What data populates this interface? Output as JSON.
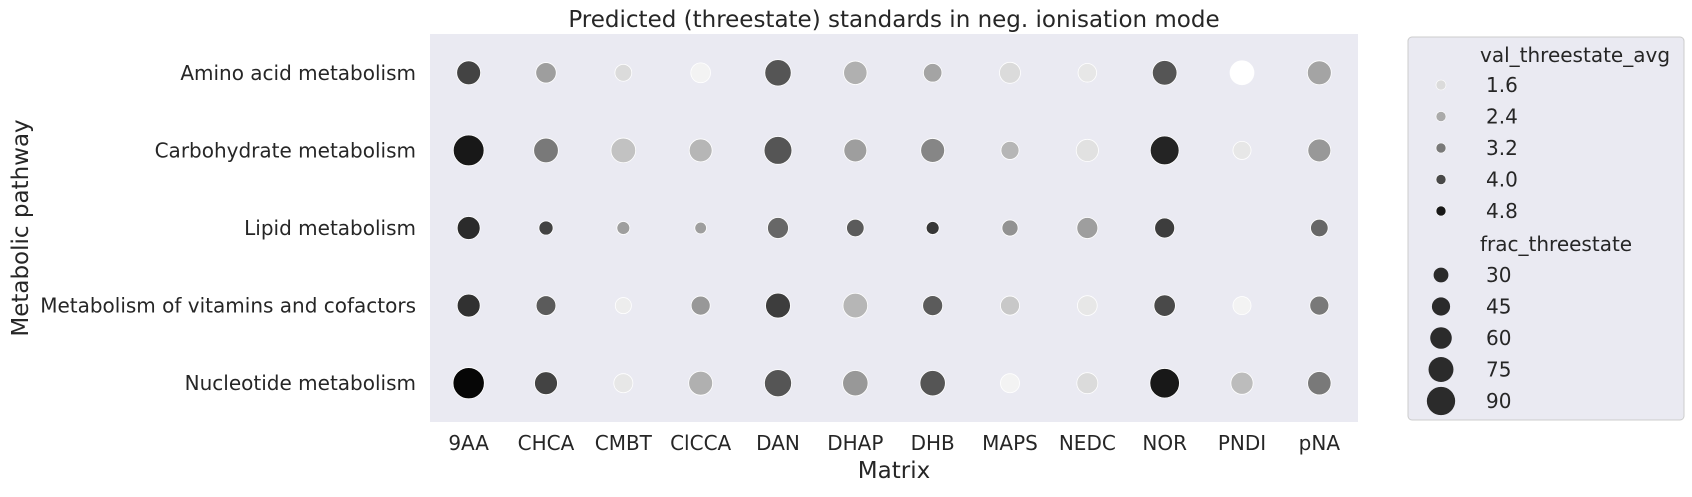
{
  "chart_data": {
    "type": "scatter",
    "title": "Predicted (threestate) standards in neg. ionisation mode",
    "xlabel": "Matrix",
    "ylabel": "Metabolic pathway",
    "x_categories": [
      "9AA",
      "CHCA",
      "CMBT",
      "ClCCA",
      "DAN",
      "DHAP",
      "DHB",
      "MAPS",
      "NEDC",
      "NOR",
      "PNDI",
      "pNA"
    ],
    "y_categories": [
      "Amino acid metabolism",
      "Carbohydrate metabolism",
      "Lipid metabolism",
      "Metabolism of vitamins and cofactors",
      "Nucleotide metabolism"
    ],
    "grid": false,
    "legend_position": "right-outside",
    "color_legend": {
      "title": "val_threestate_avg",
      "entries": [
        "1.6",
        "2.4",
        "3.2",
        "4.0",
        "4.8"
      ],
      "values": [
        1.6,
        2.4,
        3.2,
        4.0,
        4.8
      ],
      "range": [
        1.0,
        5.2
      ]
    },
    "size_legend": {
      "title": "frac_threestate",
      "entries": [
        "30",
        "45",
        "60",
        "75",
        "90"
      ],
      "values": [
        30,
        45,
        60,
        75,
        90
      ],
      "range": [
        5,
        95
      ]
    },
    "points": [
      {
        "x": "9AA",
        "y": "Amino acid metabolism",
        "val": 4.1,
        "frac": 62
      },
      {
        "x": "CHCA",
        "y": "Amino acid metabolism",
        "val": 2.6,
        "frac": 48
      },
      {
        "x": "CMBT",
        "y": "Amino acid metabolism",
        "val": 1.6,
        "frac": 33
      },
      {
        "x": "ClCCA",
        "y": "Amino acid metabolism",
        "val": 1.2,
        "frac": 45
      },
      {
        "x": "DAN",
        "y": "Amino acid metabolism",
        "val": 3.8,
        "frac": 72
      },
      {
        "x": "DHAP",
        "y": "Amino acid metabolism",
        "val": 2.3,
        "frac": 60
      },
      {
        "x": "DHB",
        "y": "Amino acid metabolism",
        "val": 2.5,
        "frac": 40
      },
      {
        "x": "MAPS",
        "y": "Amino acid metabolism",
        "val": 1.6,
        "frac": 50
      },
      {
        "x": "NEDC",
        "y": "Amino acid metabolism",
        "val": 1.4,
        "frac": 40
      },
      {
        "x": "NOR",
        "y": "Amino acid metabolism",
        "val": 3.8,
        "frac": 65
      },
      {
        "x": "PNDI",
        "y": "Amino acid metabolism",
        "val": 1.0,
        "frac": 62
      },
      {
        "x": "pNA",
        "y": "Amino acid metabolism",
        "val": 2.5,
        "frac": 62
      },
      {
        "x": "9AA",
        "y": "Carbohydrate metabolism",
        "val": 4.8,
        "frac": 90
      },
      {
        "x": "CHCA",
        "y": "Carbohydrate metabolism",
        "val": 3.2,
        "frac": 65
      },
      {
        "x": "CMBT",
        "y": "Carbohydrate metabolism",
        "val": 2.0,
        "frac": 65
      },
      {
        "x": "ClCCA",
        "y": "Carbohydrate metabolism",
        "val": 2.2,
        "frac": 58
      },
      {
        "x": "DAN",
        "y": "Carbohydrate metabolism",
        "val": 3.8,
        "frac": 78
      },
      {
        "x": "DHAP",
        "y": "Carbohydrate metabolism",
        "val": 2.6,
        "frac": 58
      },
      {
        "x": "DHB",
        "y": "Carbohydrate metabolism",
        "val": 3.0,
        "frac": 62
      },
      {
        "x": "MAPS",
        "y": "Carbohydrate metabolism",
        "val": 2.2,
        "frac": 38
      },
      {
        "x": "NEDC",
        "y": "Carbohydrate metabolism",
        "val": 1.5,
        "frac": 55
      },
      {
        "x": "NOR",
        "y": "Carbohydrate metabolism",
        "val": 4.6,
        "frac": 82
      },
      {
        "x": "PNDI",
        "y": "Carbohydrate metabolism",
        "val": 1.4,
        "frac": 38
      },
      {
        "x": "pNA",
        "y": "Carbohydrate metabolism",
        "val": 2.7,
        "frac": 58
      },
      {
        "x": "9AA",
        "y": "Lipid metabolism",
        "val": 4.5,
        "frac": 58
      },
      {
        "x": "CHCA",
        "y": "Lipid metabolism",
        "val": 4.1,
        "frac": 22
      },
      {
        "x": "CMBT",
        "y": "Lipid metabolism",
        "val": 2.6,
        "frac": 17
      },
      {
        "x": "ClCCA",
        "y": "Lipid metabolism",
        "val": 2.6,
        "frac": 12
      },
      {
        "x": "DAN",
        "y": "Lipid metabolism",
        "val": 3.5,
        "frac": 50
      },
      {
        "x": "DHAP",
        "y": "Lipid metabolism",
        "val": 3.7,
        "frac": 36
      },
      {
        "x": "DHB",
        "y": "Lipid metabolism",
        "val": 4.3,
        "frac": 17
      },
      {
        "x": "MAPS",
        "y": "Lipid metabolism",
        "val": 2.8,
        "frac": 30
      },
      {
        "x": "NEDC",
        "y": "Lipid metabolism",
        "val": 2.6,
        "frac": 50
      },
      {
        "x": "NOR",
        "y": "Lipid metabolism",
        "val": 4.2,
        "frac": 46
      },
      {
        "x": "pNA",
        "y": "Lipid metabolism",
        "val": 3.5,
        "frac": 36
      },
      {
        "x": "9AA",
        "y": "Metabolism of vitamins and cofactors",
        "val": 4.4,
        "frac": 58
      },
      {
        "x": "CHCA",
        "y": "Metabolism of vitamins and cofactors",
        "val": 3.7,
        "frac": 45
      },
      {
        "x": "CMBT",
        "y": "Metabolism of vitamins and cofactors",
        "val": 1.3,
        "frac": 30
      },
      {
        "x": "ClCCA",
        "y": "Metabolism of vitamins and cofactors",
        "val": 2.7,
        "frac": 42
      },
      {
        "x": "DAN",
        "y": "Metabolism of vitamins and cofactors",
        "val": 4.2,
        "frac": 66
      },
      {
        "x": "DHAP",
        "y": "Metabolism of vitamins and cofactors",
        "val": 2.2,
        "frac": 65
      },
      {
        "x": "DHB",
        "y": "Metabolism of vitamins and cofactors",
        "val": 3.7,
        "frac": 46
      },
      {
        "x": "MAPS",
        "y": "Metabolism of vitamins and cofactors",
        "val": 1.9,
        "frac": 42
      },
      {
        "x": "NEDC",
        "y": "Metabolism of vitamins and cofactors",
        "val": 1.4,
        "frac": 45
      },
      {
        "x": "NOR",
        "y": "Metabolism of vitamins and cofactors",
        "val": 4.0,
        "frac": 52
      },
      {
        "x": "PNDI",
        "y": "Metabolism of vitamins and cofactors",
        "val": 1.2,
        "frac": 38
      },
      {
        "x": "pNA",
        "y": "Metabolism of vitamins and cofactors",
        "val": 3.2,
        "frac": 42
      },
      {
        "x": "9AA",
        "y": "Nucleotide metabolism",
        "val": 5.1,
        "frac": 92
      },
      {
        "x": "CHCA",
        "y": "Nucleotide metabolism",
        "val": 4.1,
        "frac": 58
      },
      {
        "x": "CMBT",
        "y": "Nucleotide metabolism",
        "val": 1.4,
        "frac": 42
      },
      {
        "x": "ClCCA",
        "y": "Nucleotide metabolism",
        "val": 2.3,
        "frac": 62
      },
      {
        "x": "DAN",
        "y": "Nucleotide metabolism",
        "val": 3.8,
        "frac": 75
      },
      {
        "x": "DHAP",
        "y": "Nucleotide metabolism",
        "val": 2.7,
        "frac": 68
      },
      {
        "x": "DHB",
        "y": "Nucleotide metabolism",
        "val": 3.8,
        "frac": 68
      },
      {
        "x": "MAPS",
        "y": "Nucleotide metabolism",
        "val": 1.2,
        "frac": 42
      },
      {
        "x": "NEDC",
        "y": "Nucleotide metabolism",
        "val": 1.6,
        "frac": 50
      },
      {
        "x": "NOR",
        "y": "Nucleotide metabolism",
        "val": 4.8,
        "frac": 85
      },
      {
        "x": "PNDI",
        "y": "Nucleotide metabolism",
        "val": 2.1,
        "frac": 55
      },
      {
        "x": "pNA",
        "y": "Nucleotide metabolism",
        "val": 3.2,
        "frac": 60
      }
    ]
  }
}
